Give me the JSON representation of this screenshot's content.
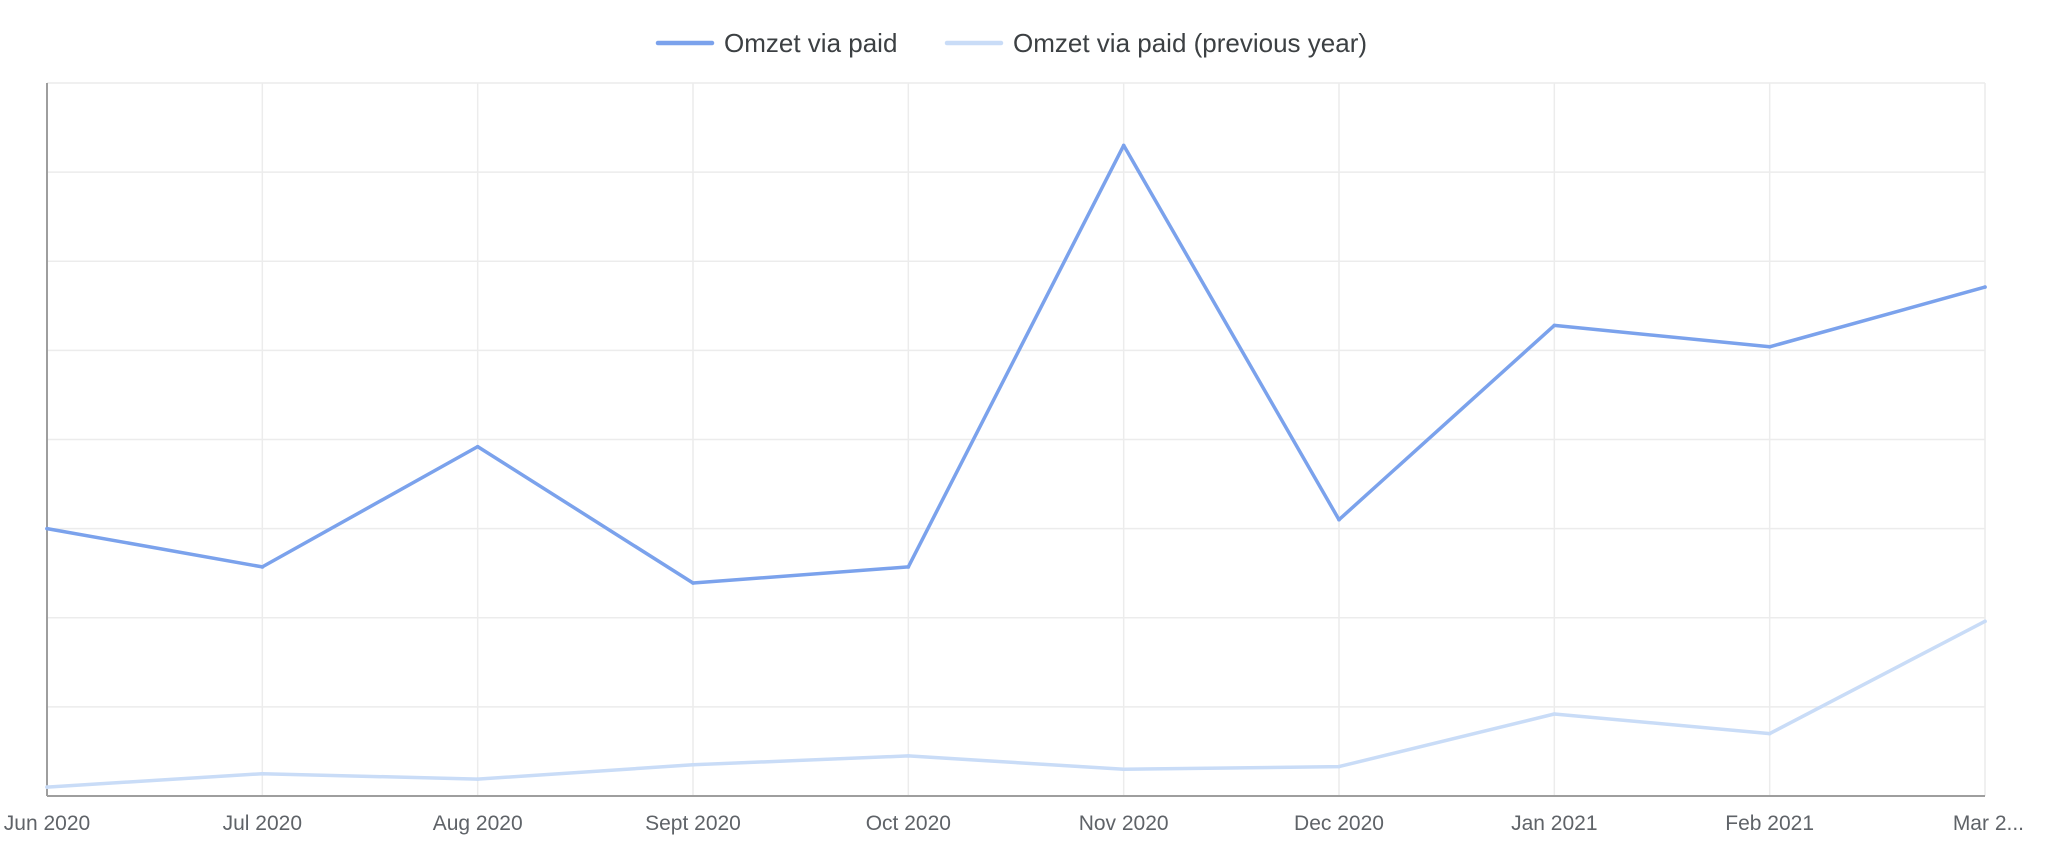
{
  "chart_data": {
    "type": "line",
    "title": "",
    "xlabel": "",
    "ylabel": "",
    "categories": [
      "Jun 2020",
      "Jul 2020",
      "Aug 2020",
      "Sept 2020",
      "Oct 2020",
      "Nov 2020",
      "Dec 2020",
      "Jan 2021",
      "Feb 2021",
      "Mar 2..."
    ],
    "ylim": [
      0,
      8
    ],
    "y_tick_labels_visible": false,
    "grid": true,
    "legend_position": "top-center",
    "series": [
      {
        "name": "Omzet via paid",
        "color": "#7ba2ec",
        "values": [
          3.0,
          2.57,
          3.92,
          2.39,
          2.57,
          7.3,
          3.1,
          5.28,
          5.04,
          5.71
        ]
      },
      {
        "name": "Omzet via paid (previous year)",
        "color": "#c9dcf7",
        "values": [
          0.1,
          0.25,
          0.19,
          0.35,
          0.45,
          0.3,
          0.33,
          0.92,
          0.7,
          1.96
        ]
      }
    ]
  }
}
